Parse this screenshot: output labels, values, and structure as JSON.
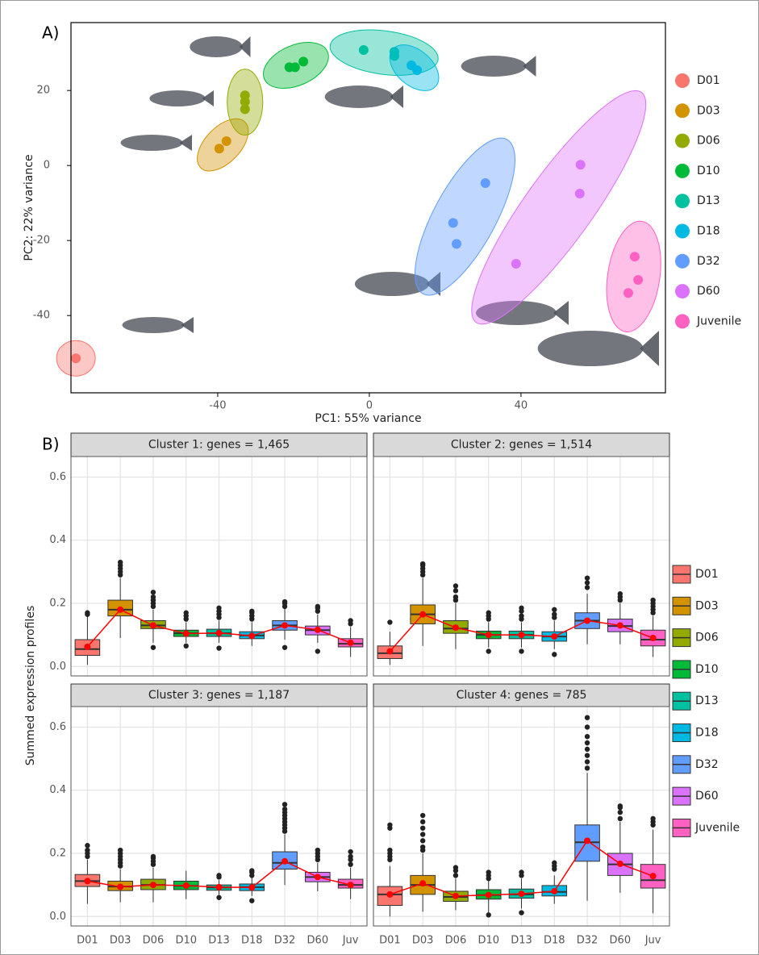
{
  "panels": [
    "A)",
    "B)"
  ],
  "chart_data": [
    {
      "type": "scatter",
      "xlabel": "PC1: 55% variance",
      "ylabel": "PC2: 22% variance",
      "xlim": [
        -78.7,
        78.1
      ],
      "ylim": [
        -60.6,
        38.1
      ],
      "xticks": [
        -40,
        0,
        40
      ],
      "yticks": [
        -40,
        -20,
        0,
        20
      ],
      "series": [
        {
          "name": "D01",
          "color": "#f8766d",
          "x": [
            -77.4
          ],
          "y": [
            -51.4
          ]
        },
        {
          "name": "D03",
          "color": "#d39200",
          "x": [
            -39.6,
            -37.7
          ],
          "y": [
            4.5,
            6.5
          ]
        },
        {
          "name": "D06",
          "color": "#93aa00",
          "x": [
            -32.8,
            -32.8,
            -32.8
          ],
          "y": [
            18.7,
            17,
            15
          ]
        },
        {
          "name": "D10",
          "color": "#00ba38",
          "x": [
            -21.1,
            -19.6,
            -17.4
          ],
          "y": [
            26.2,
            26.2,
            27.7
          ]
        },
        {
          "name": "D13",
          "color": "#00c19f",
          "x": [
            -1.5,
            6.6,
            6.6
          ],
          "y": [
            30.8,
            30.3,
            29.2
          ]
        },
        {
          "name": "D18",
          "color": "#00b9e3",
          "x": [
            11.1,
            12.6
          ],
          "y": [
            26.7,
            25.4
          ]
        },
        {
          "name": "D32",
          "color": "#619cff",
          "x": [
            30.6,
            22.1,
            23
          ],
          "y": [
            -4.7,
            -15.3,
            -20.9
          ]
        },
        {
          "name": "D60",
          "color": "#db72fb",
          "x": [
            55.7,
            55.5,
            38.7
          ],
          "y": [
            0.2,
            -7.5,
            -26.2
          ]
        },
        {
          "name": "Juvenile",
          "color": "#ff61c3",
          "x": [
            70,
            70.9,
            68.3
          ],
          "y": [
            -24.3,
            -30.5,
            -34
          ]
        }
      ]
    },
    {
      "type": "box",
      "ylabel": "Summed expression profiles",
      "categories": [
        "D01",
        "D03",
        "D06",
        "D10",
        "D13",
        "D18",
        "D32",
        "D60",
        "Juv"
      ],
      "ylim": [
        -0.03,
        0.665
      ],
      "yticks": [
        {
          "value": 0,
          "label": "0.0"
        },
        0.2,
        0.4,
        0.6
      ],
      "grid": true,
      "series": [
        {
          "name": "D01",
          "color": "#f8766d"
        },
        {
          "name": "D03",
          "color": "#d39200"
        },
        {
          "name": "D06",
          "color": "#93aa00"
        },
        {
          "name": "D10",
          "color": "#00ba38"
        },
        {
          "name": "D13",
          "color": "#00c19f"
        },
        {
          "name": "D18",
          "color": "#00b9e3"
        },
        {
          "name": "D32",
          "color": "#619cff"
        },
        {
          "name": "D60",
          "color": "#db72fb"
        },
        {
          "name": "Juvenile",
          "color": "#ff61c3"
        }
      ],
      "facets": [
        {
          "title": "Cluster 1: genes = 1,465",
          "q1": [
            0.035,
            0.16,
            0.12,
            0.095,
            0.095,
            0.088,
            0.115,
            0.1,
            0.062
          ],
          "median": [
            0.055,
            0.18,
            0.13,
            0.105,
            0.105,
            0.098,
            0.13,
            0.115,
            0.072
          ],
          "q3": [
            0.085,
            0.21,
            0.145,
            0.115,
            0.118,
            0.11,
            0.145,
            0.128,
            0.088
          ],
          "whisker_low": [
            0.005,
            0.09,
            0.075,
            0.075,
            0.075,
            0.065,
            0.085,
            0.075,
            0.03
          ],
          "whisker_high": [
            0.16,
            0.28,
            0.18,
            0.14,
            0.145,
            0.14,
            0.185,
            0.165,
            0.125
          ],
          "mean": [
            0.062,
            0.18,
            0.13,
            0.104,
            0.106,
            0.097,
            0.13,
            0.116,
            0.075
          ],
          "outliers": [
            [
              0.165,
              0.17
            ],
            [
              0.29,
              0.3,
              0.31,
              0.32,
              0.33
            ],
            [
              0.06,
              0.19,
              0.2,
              0.21,
              0.22,
              0.235
            ],
            [
              0.065,
              0.15,
              0.16,
              0.17
            ],
            [
              0.058,
              0.155,
              0.165,
              0.175,
              0.185
            ],
            [
              0.15,
              0.16,
              0.17,
              0.175
            ],
            [
              0.06,
              0.19,
              0.2,
              0.205
            ],
            [
              0.048,
              0.175,
              0.185,
              0.19
            ],
            [
              0.135,
              0.145
            ]
          ]
        },
        {
          "title": "Cluster 2: genes = 1,514",
          "q1": [
            0.025,
            0.135,
            0.105,
            0.088,
            0.088,
            0.08,
            0.12,
            0.11,
            0.065
          ],
          "median": [
            0.042,
            0.165,
            0.12,
            0.1,
            0.1,
            0.095,
            0.145,
            0.128,
            0.085
          ],
          "q3": [
            0.065,
            0.195,
            0.145,
            0.112,
            0.112,
            0.11,
            0.17,
            0.15,
            0.115
          ],
          "whisker_low": [
            0.005,
            0.065,
            0.055,
            0.06,
            0.06,
            0.055,
            0.07,
            0.07,
            0.03
          ],
          "whisker_high": [
            0.11,
            0.28,
            0.2,
            0.14,
            0.14,
            0.145,
            0.23,
            0.2,
            0.16
          ],
          "mean": [
            0.048,
            0.165,
            0.123,
            0.1,
            0.1,
            0.095,
            0.145,
            0.13,
            0.09
          ],
          "outliers": [
            [
              0.14
            ],
            [
              0.29,
              0.3,
              0.31,
              0.32,
              0.325
            ],
            [
              0.21,
              0.22,
              0.24,
              0.255
            ],
            [
              0.048,
              0.15,
              0.16,
              0.17
            ],
            [
              0.048,
              0.15,
              0.16,
              0.175,
              0.185
            ],
            [
              0.038,
              0.155,
              0.165,
              0.18
            ],
            [
              0.25,
              0.265,
              0.28
            ],
            [
              0.21,
              0.22,
              0.23
            ],
            [
              0.17,
              0.18,
              0.19,
              0.2,
              0.21
            ]
          ]
        },
        {
          "title": "Cluster 3: genes = 1,187",
          "q1": [
            0.095,
            0.082,
            0.085,
            0.085,
            0.083,
            0.082,
            0.15,
            0.11,
            0.09
          ],
          "median": [
            0.112,
            0.095,
            0.1,
            0.097,
            0.092,
            0.093,
            0.17,
            0.125,
            0.1
          ],
          "q3": [
            0.133,
            0.112,
            0.118,
            0.112,
            0.1,
            0.103,
            0.205,
            0.14,
            0.118
          ],
          "whisker_low": [
            0.04,
            0.045,
            0.045,
            0.055,
            0.068,
            0.065,
            0.1,
            0.08,
            0.055
          ],
          "whisker_high": [
            0.18,
            0.15,
            0.155,
            0.145,
            0.115,
            0.125,
            0.26,
            0.17,
            0.155
          ],
          "mean": [
            0.112,
            0.094,
            0.1,
            0.098,
            0.093,
            0.092,
            0.175,
            0.125,
            0.1
          ],
          "outliers": [
            [
              0.19,
              0.2,
              0.21,
              0.225
            ],
            [
              0.16,
              0.17,
              0.18,
              0.19,
              0.2,
              0.21
            ],
            [
              0.165,
              0.175,
              0.185,
              0.19
            ],
            [],
            [
              0.06,
              0.125,
              0.13
            ],
            [
              0.05,
              0.13,
              0.14,
              0.145
            ],
            [
              0.27,
              0.28,
              0.29,
              0.3,
              0.31,
              0.32,
              0.33,
              0.34,
              0.355
            ],
            [
              0.18,
              0.19,
              0.2,
              0.21
            ],
            [
              0.165,
              0.18,
              0.19,
              0.205
            ]
          ]
        },
        {
          "title": "Cluster 4: genes = 785",
          "q1": [
            0.035,
            0.07,
            0.048,
            0.055,
            0.058,
            0.065,
            0.175,
            0.13,
            0.09
          ],
          "median": [
            0.07,
            0.1,
            0.062,
            0.068,
            0.07,
            0.078,
            0.235,
            0.165,
            0.115
          ],
          "q3": [
            0.095,
            0.13,
            0.08,
            0.085,
            0.087,
            0.098,
            0.29,
            0.2,
            0.165
          ],
          "whisker_low": [
            0,
            0.015,
            0.02,
            0.01,
            0.025,
            0.04,
            0.05,
            0.075,
            0.01
          ],
          "whisker_high": [
            0.16,
            0.2,
            0.12,
            0.115,
            0.12,
            0.13,
            0.455,
            0.3,
            0.275
          ],
          "mean": [
            0.07,
            0.105,
            0.065,
            0.068,
            0.072,
            0.08,
            0.24,
            0.167,
            0.128
          ],
          "outliers": [
            [
              0.18,
              0.19,
              0.2,
              0.21,
              0.28,
              0.29
            ],
            [
              0.21,
              0.22,
              0.24,
              0.26,
              0.28,
              0.3,
              0.32
            ],
            [
              0.13,
              0.145,
              0.155
            ],
            [
              0.005,
              0.12,
              0.13,
              0.14
            ],
            [
              0.012,
              0.13,
              0.14
            ],
            [
              0.15,
              0.16,
              0.17
            ],
            [
              0.47,
              0.49,
              0.51,
              0.53,
              0.55,
              0.57,
              0.6,
              0.63
            ],
            [
              0.31,
              0.33,
              0.345,
              0.35
            ],
            [
              0.29,
              0.3,
              0.31
            ]
          ]
        }
      ]
    }
  ]
}
